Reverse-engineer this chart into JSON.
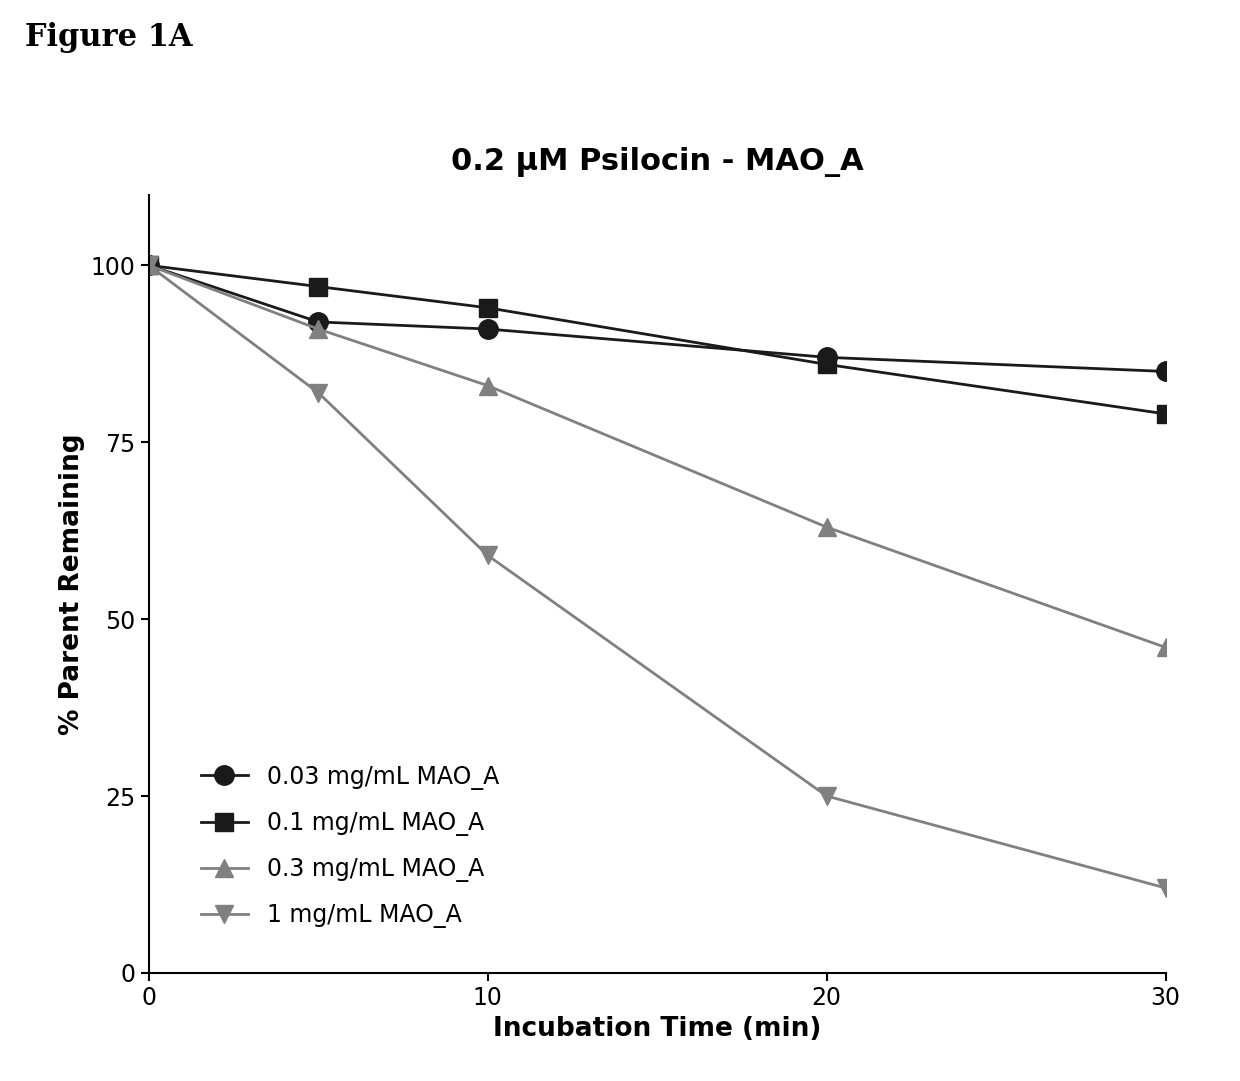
{
  "title": "0.2 μM Psilocin - MAO_A",
  "figure_label": "Figure 1A",
  "xlabel": "Incubation Time (min)",
  "ylabel": "% Parent Remaining",
  "xlim": [
    0,
    30
  ],
  "ylim": [
    0,
    110
  ],
  "yticks": [
    0,
    25,
    50,
    75,
    100
  ],
  "xticks": [
    0,
    10,
    20,
    30
  ],
  "series": [
    {
      "label": "0.03 mg/mL MAO_A",
      "x": [
        0,
        5,
        10,
        20,
        30
      ],
      "y": [
        100,
        92,
        91,
        87,
        85
      ],
      "color": "#1a1a1a",
      "marker": "o",
      "markersize": 14,
      "linewidth": 2.0
    },
    {
      "label": "0.1 mg/mL MAO_A",
      "x": [
        0,
        5,
        10,
        20,
        30
      ],
      "y": [
        100,
        97,
        94,
        86,
        79
      ],
      "color": "#1a1a1a",
      "marker": "s",
      "markersize": 13,
      "linewidth": 2.0
    },
    {
      "label": "0.3 mg/mL MAO_A",
      "x": [
        0,
        5,
        10,
        20,
        30
      ],
      "y": [
        100,
        91,
        83,
        63,
        46
      ],
      "color": "#808080",
      "marker": "^",
      "markersize": 13,
      "linewidth": 2.0
    },
    {
      "label": "1 mg/mL MAO_A",
      "x": [
        0,
        5,
        10,
        20,
        30
      ],
      "y": [
        100,
        82,
        59,
        25,
        12
      ],
      "color": "#808080",
      "marker": "v",
      "markersize": 13,
      "linewidth": 2.0
    }
  ],
  "background_color": "#ffffff",
  "title_fontsize": 22,
  "label_fontsize": 19,
  "tick_fontsize": 17,
  "legend_fontsize": 17,
  "figure_label_fontsize": 22
}
